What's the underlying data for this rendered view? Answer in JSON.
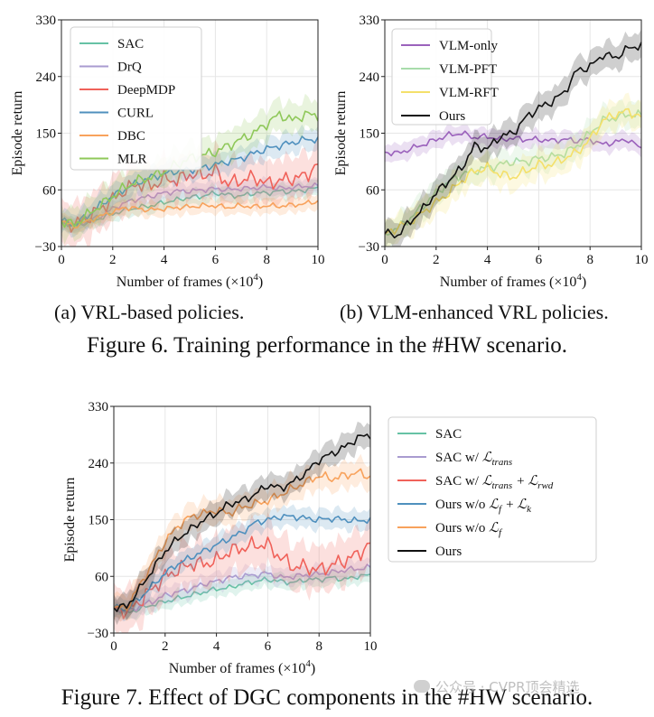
{
  "chart_data": [
    {
      "type": "line",
      "xlabel": "Number of frames (×10⁴)",
      "ylabel": "Episode return",
      "xlim": [
        0,
        10
      ],
      "ylim": [
        -30,
        330
      ],
      "xticks": [
        0,
        2,
        4,
        6,
        8,
        10
      ],
      "yticks": [
        -30,
        60,
        150,
        240,
        330
      ],
      "grid": true,
      "legend": "top-left",
      "x": [
        0,
        0.5,
        1,
        1.5,
        2,
        2.5,
        3,
        3.5,
        4,
        4.5,
        5,
        5.5,
        6,
        6.5,
        7,
        7.5,
        8,
        8.5,
        9,
        9.5,
        10
      ],
      "series": [
        {
          "name": "SAC",
          "color": "#66c2a5",
          "values": [
            10,
            2,
            8,
            15,
            22,
            28,
            32,
            35,
            40,
            44,
            48,
            50,
            55,
            52,
            50,
            55,
            55,
            58,
            57,
            60,
            63
          ],
          "band": 14
        },
        {
          "name": "DrQ",
          "color": "#a99bd0",
          "values": [
            10,
            3,
            10,
            18,
            30,
            40,
            46,
            50,
            55,
            58,
            58,
            60,
            62,
            60,
            62,
            63,
            65,
            62,
            64,
            66,
            66
          ],
          "band": 14
        },
        {
          "name": "DeepMDP",
          "color": "#f0625a",
          "values": [
            10,
            4,
            15,
            30,
            45,
            60,
            70,
            65,
            78,
            75,
            85,
            82,
            90,
            70,
            75,
            80,
            70,
            75,
            78,
            82,
            100
          ],
          "band": 40
        },
        {
          "name": "CURL",
          "color": "#4f90be",
          "values": [
            10,
            5,
            18,
            35,
            50,
            62,
            72,
            80,
            85,
            90,
            92,
            95,
            100,
            105,
            110,
            118,
            125,
            130,
            135,
            140,
            140
          ],
          "band": 20
        },
        {
          "name": "DBC",
          "color": "#f8a25c",
          "values": [
            10,
            2,
            10,
            18,
            25,
            32,
            30,
            28,
            30,
            32,
            33,
            35,
            35,
            32,
            35,
            33,
            35,
            34,
            36,
            38,
            42
          ],
          "band": 14
        },
        {
          "name": "MLR",
          "color": "#8fc85a",
          "values": [
            10,
            5,
            20,
            35,
            50,
            65,
            75,
            80,
            90,
            100,
            110,
            115,
            120,
            130,
            140,
            150,
            165,
            180,
            170,
            180,
            178
          ],
          "band": 28
        }
      ]
    },
    {
      "type": "line",
      "xlabel": "Number of frames (×10⁴)",
      "ylabel": "Episode return",
      "xlim": [
        0,
        10
      ],
      "ylim": [
        -30,
        330
      ],
      "xticks": [
        0,
        2,
        4,
        6,
        8,
        10
      ],
      "yticks": [
        -30,
        60,
        150,
        240,
        330
      ],
      "grid": true,
      "legend": "top-left",
      "x": [
        0,
        0.5,
        1,
        1.5,
        2,
        2.5,
        3,
        3.5,
        4,
        4.5,
        5,
        5.5,
        6,
        6.5,
        7,
        7.5,
        8,
        8.5,
        9,
        9.5,
        10
      ],
      "series": [
        {
          "name": "VLM-only",
          "color": "#9b62bc",
          "values": [
            120,
            118,
            125,
            132,
            140,
            147,
            150,
            143,
            145,
            140,
            142,
            140,
            140,
            138,
            140,
            138,
            140,
            132,
            136,
            140,
            125
          ],
          "band": 16
        },
        {
          "name": "VLM-PFT",
          "color": "#a8dcab",
          "values": [
            -10,
            0,
            15,
            35,
            55,
            72,
            85,
            90,
            95,
            100,
            105,
            105,
            110,
            112,
            118,
            130,
            150,
            170,
            175,
            180,
            178
          ],
          "band": 24
        },
        {
          "name": "VLM-RFT",
          "color": "#f4e06a",
          "values": [
            -10,
            0,
            10,
            25,
            40,
            55,
            75,
            90,
            95,
            85,
            80,
            90,
            100,
            100,
            110,
            120,
            140,
            170,
            180,
            185,
            175
          ],
          "band": 26
        },
        {
          "name": "Ours",
          "color": "#111111",
          "values": [
            -10,
            -12,
            10,
            30,
            55,
            75,
            95,
            130,
            125,
            145,
            150,
            175,
            190,
            200,
            215,
            250,
            255,
            275,
            270,
            285,
            290
          ],
          "band": 24
        }
      ]
    },
    {
      "type": "line",
      "xlabel": "Number of frames (×10⁴)",
      "ylabel": "Episode return",
      "xlim": [
        0,
        10
      ],
      "ylim": [
        -30,
        330
      ],
      "xticks": [
        0,
        2,
        4,
        6,
        8,
        10
      ],
      "yticks": [
        -30,
        60,
        150,
        240,
        330
      ],
      "grid": true,
      "legend": "right",
      "x": [
        0,
        0.5,
        1,
        1.5,
        2,
        2.5,
        3,
        3.5,
        4,
        4.5,
        5,
        5.5,
        6,
        6.5,
        7,
        7.5,
        8,
        8.5,
        9,
        9.5,
        10
      ],
      "series": [
        {
          "name": "SAC",
          "color": "#66c2a5",
          "values": [
            10,
            2,
            8,
            15,
            20,
            25,
            30,
            35,
            40,
            42,
            48,
            52,
            55,
            52,
            50,
            55,
            55,
            58,
            55,
            60,
            62
          ],
          "band": 14
        },
        {
          "name": "SAC w/ ℒtrans",
          "color": "#a99bd0",
          "values": [
            10,
            3,
            12,
            20,
            30,
            35,
            40,
            48,
            52,
            58,
            60,
            62,
            65,
            58,
            60,
            62,
            64,
            66,
            70,
            72,
            74
          ],
          "band": 16
        },
        {
          "name": "SAC w/ ℒtrans + ℒrwd",
          "color": "#f0625a",
          "values": [
            10,
            5,
            20,
            40,
            60,
            70,
            80,
            80,
            85,
            100,
            105,
            110,
            110,
            90,
            75,
            75,
            70,
            78,
            85,
            95,
            112
          ],
          "band": 42
        },
        {
          "name": "Ours w/o ℒf + ℒk",
          "color": "#4f90be",
          "values": [
            10,
            8,
            25,
            45,
            65,
            80,
            90,
            100,
            110,
            120,
            130,
            145,
            150,
            155,
            155,
            152,
            150,
            152,
            150,
            148,
            150
          ],
          "band": 18
        },
        {
          "name": "Ours w/o ℒf",
          "color": "#f8a25c",
          "values": [
            10,
            10,
            45,
            80,
            115,
            140,
            155,
            160,
            165,
            160,
            170,
            175,
            180,
            190,
            200,
            210,
            220,
            215,
            220,
            225,
            218
          ],
          "band": 24
        },
        {
          "name": "Ours",
          "color": "#111111",
          "values": [
            10,
            12,
            40,
            70,
            100,
            120,
            135,
            150,
            160,
            175,
            180,
            190,
            205,
            200,
            210,
            225,
            245,
            255,
            265,
            280,
            285
          ],
          "band": 22
        }
      ]
    }
  ],
  "captions": {
    "sub_a": "(a) VRL-based policies.",
    "sub_b": "(b) VLM-enhanced VRL policies.",
    "fig6": "Figure 6. Training performance in the #HW scenario.",
    "fig7": "Figure 7. Effect of DGC components in the #HW scenario."
  },
  "watermark": "公众号 · CVPR顶会精选"
}
